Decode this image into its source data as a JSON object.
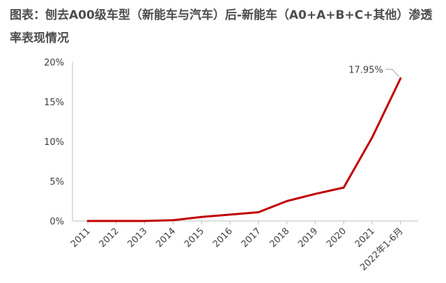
{
  "title": "图表：刨去A00级车型（新能车与汽车）后-新能车（A0+A+B+C+其他）渗透率表现情况",
  "chart_data": {
    "type": "line",
    "title": "图表：刨去A00级车型（新能车与汽车）后-新能车（A0+A+B+C+其他）渗透率表现情况",
    "xlabel": "",
    "ylabel": "",
    "categories": [
      "2011",
      "2012",
      "2013",
      "2014",
      "2015",
      "2016",
      "2017",
      "2018",
      "2019",
      "2020",
      "2021",
      "2022年1-6月"
    ],
    "x": [
      2011,
      2012,
      2013,
      2014,
      2015,
      2016,
      2017,
      2018,
      2019,
      2020,
      2021,
      2022.5
    ],
    "values": [
      0.0,
      0.0,
      0.0,
      0.1,
      0.5,
      0.8,
      1.1,
      2.5,
      3.4,
      4.2,
      10.5,
      17.95
    ],
    "ylim": [
      0,
      20
    ],
    "yticks": [
      0,
      5,
      10,
      15,
      20
    ],
    "ytick_labels": [
      "0%",
      "5%",
      "10%",
      "15%",
      "20%"
    ],
    "series_color": "#c00000",
    "grid": false,
    "annotation": {
      "text": "17.95%",
      "x": 2022.5,
      "y": 17.95
    }
  }
}
